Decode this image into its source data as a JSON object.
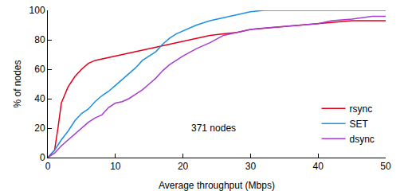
{
  "chart_data": {
    "type": "line",
    "x_label": "Average throughput (Mbps)",
    "y_label": "% of nodes",
    "annotation": "371 nodes",
    "xlim": [
      0,
      50
    ],
    "xticks": [
      0,
      10,
      20,
      30,
      40,
      50
    ],
    "ylim": [
      0,
      100
    ],
    "yticks": [
      0,
      20,
      40,
      60,
      80,
      100
    ],
    "grid": false,
    "legend": "lower right",
    "series": [
      {
        "name": "rsync",
        "color": "#e0001b",
        "x": [
          0,
          1,
          1.5,
          2,
          3,
          4,
          5,
          6,
          7,
          8,
          10,
          12,
          14,
          16,
          18,
          20,
          22,
          24,
          26,
          28,
          30,
          35,
          40,
          45,
          50
        ],
        "values": [
          0,
          5,
          20,
          37,
          48,
          55,
          60,
          64,
          66,
          67,
          69,
          71,
          73,
          75,
          77,
          79,
          81,
          83,
          84,
          85,
          87,
          89,
          91,
          93,
          93
        ]
      },
      {
        "name": "SET",
        "color": "#1a8fe3",
        "x": [
          0,
          1,
          2,
          3,
          4,
          5,
          6,
          7,
          8,
          9,
          10,
          11,
          12,
          13,
          14,
          15,
          16,
          17,
          18,
          19,
          20,
          22,
          24,
          26,
          28,
          30,
          32,
          50
        ],
        "values": [
          0,
          5,
          12,
          18,
          25,
          30,
          33,
          38,
          42,
          45,
          49,
          53,
          57,
          61,
          66,
          69,
          72,
          77,
          81,
          84,
          86,
          90,
          93,
          95,
          97,
          99,
          100,
          100
        ]
      },
      {
        "name": "dsync",
        "color": "#a83cd0",
        "x": [
          0,
          1,
          2,
          3,
          4,
          5,
          6,
          7,
          8,
          9,
          10,
          11,
          12,
          13,
          14,
          15,
          16,
          17,
          18,
          19,
          20,
          22,
          24,
          26,
          28,
          30,
          32,
          35,
          38,
          40,
          42,
          45,
          48,
          50
        ],
        "values": [
          0,
          3,
          8,
          12,
          16,
          20,
          24,
          27,
          29,
          34,
          37,
          38,
          40,
          43,
          46,
          50,
          54,
          59,
          63,
          66,
          69,
          74,
          78,
          83,
          85,
          87,
          88,
          89,
          90,
          91,
          93,
          94,
          96,
          96
        ]
      }
    ]
  }
}
